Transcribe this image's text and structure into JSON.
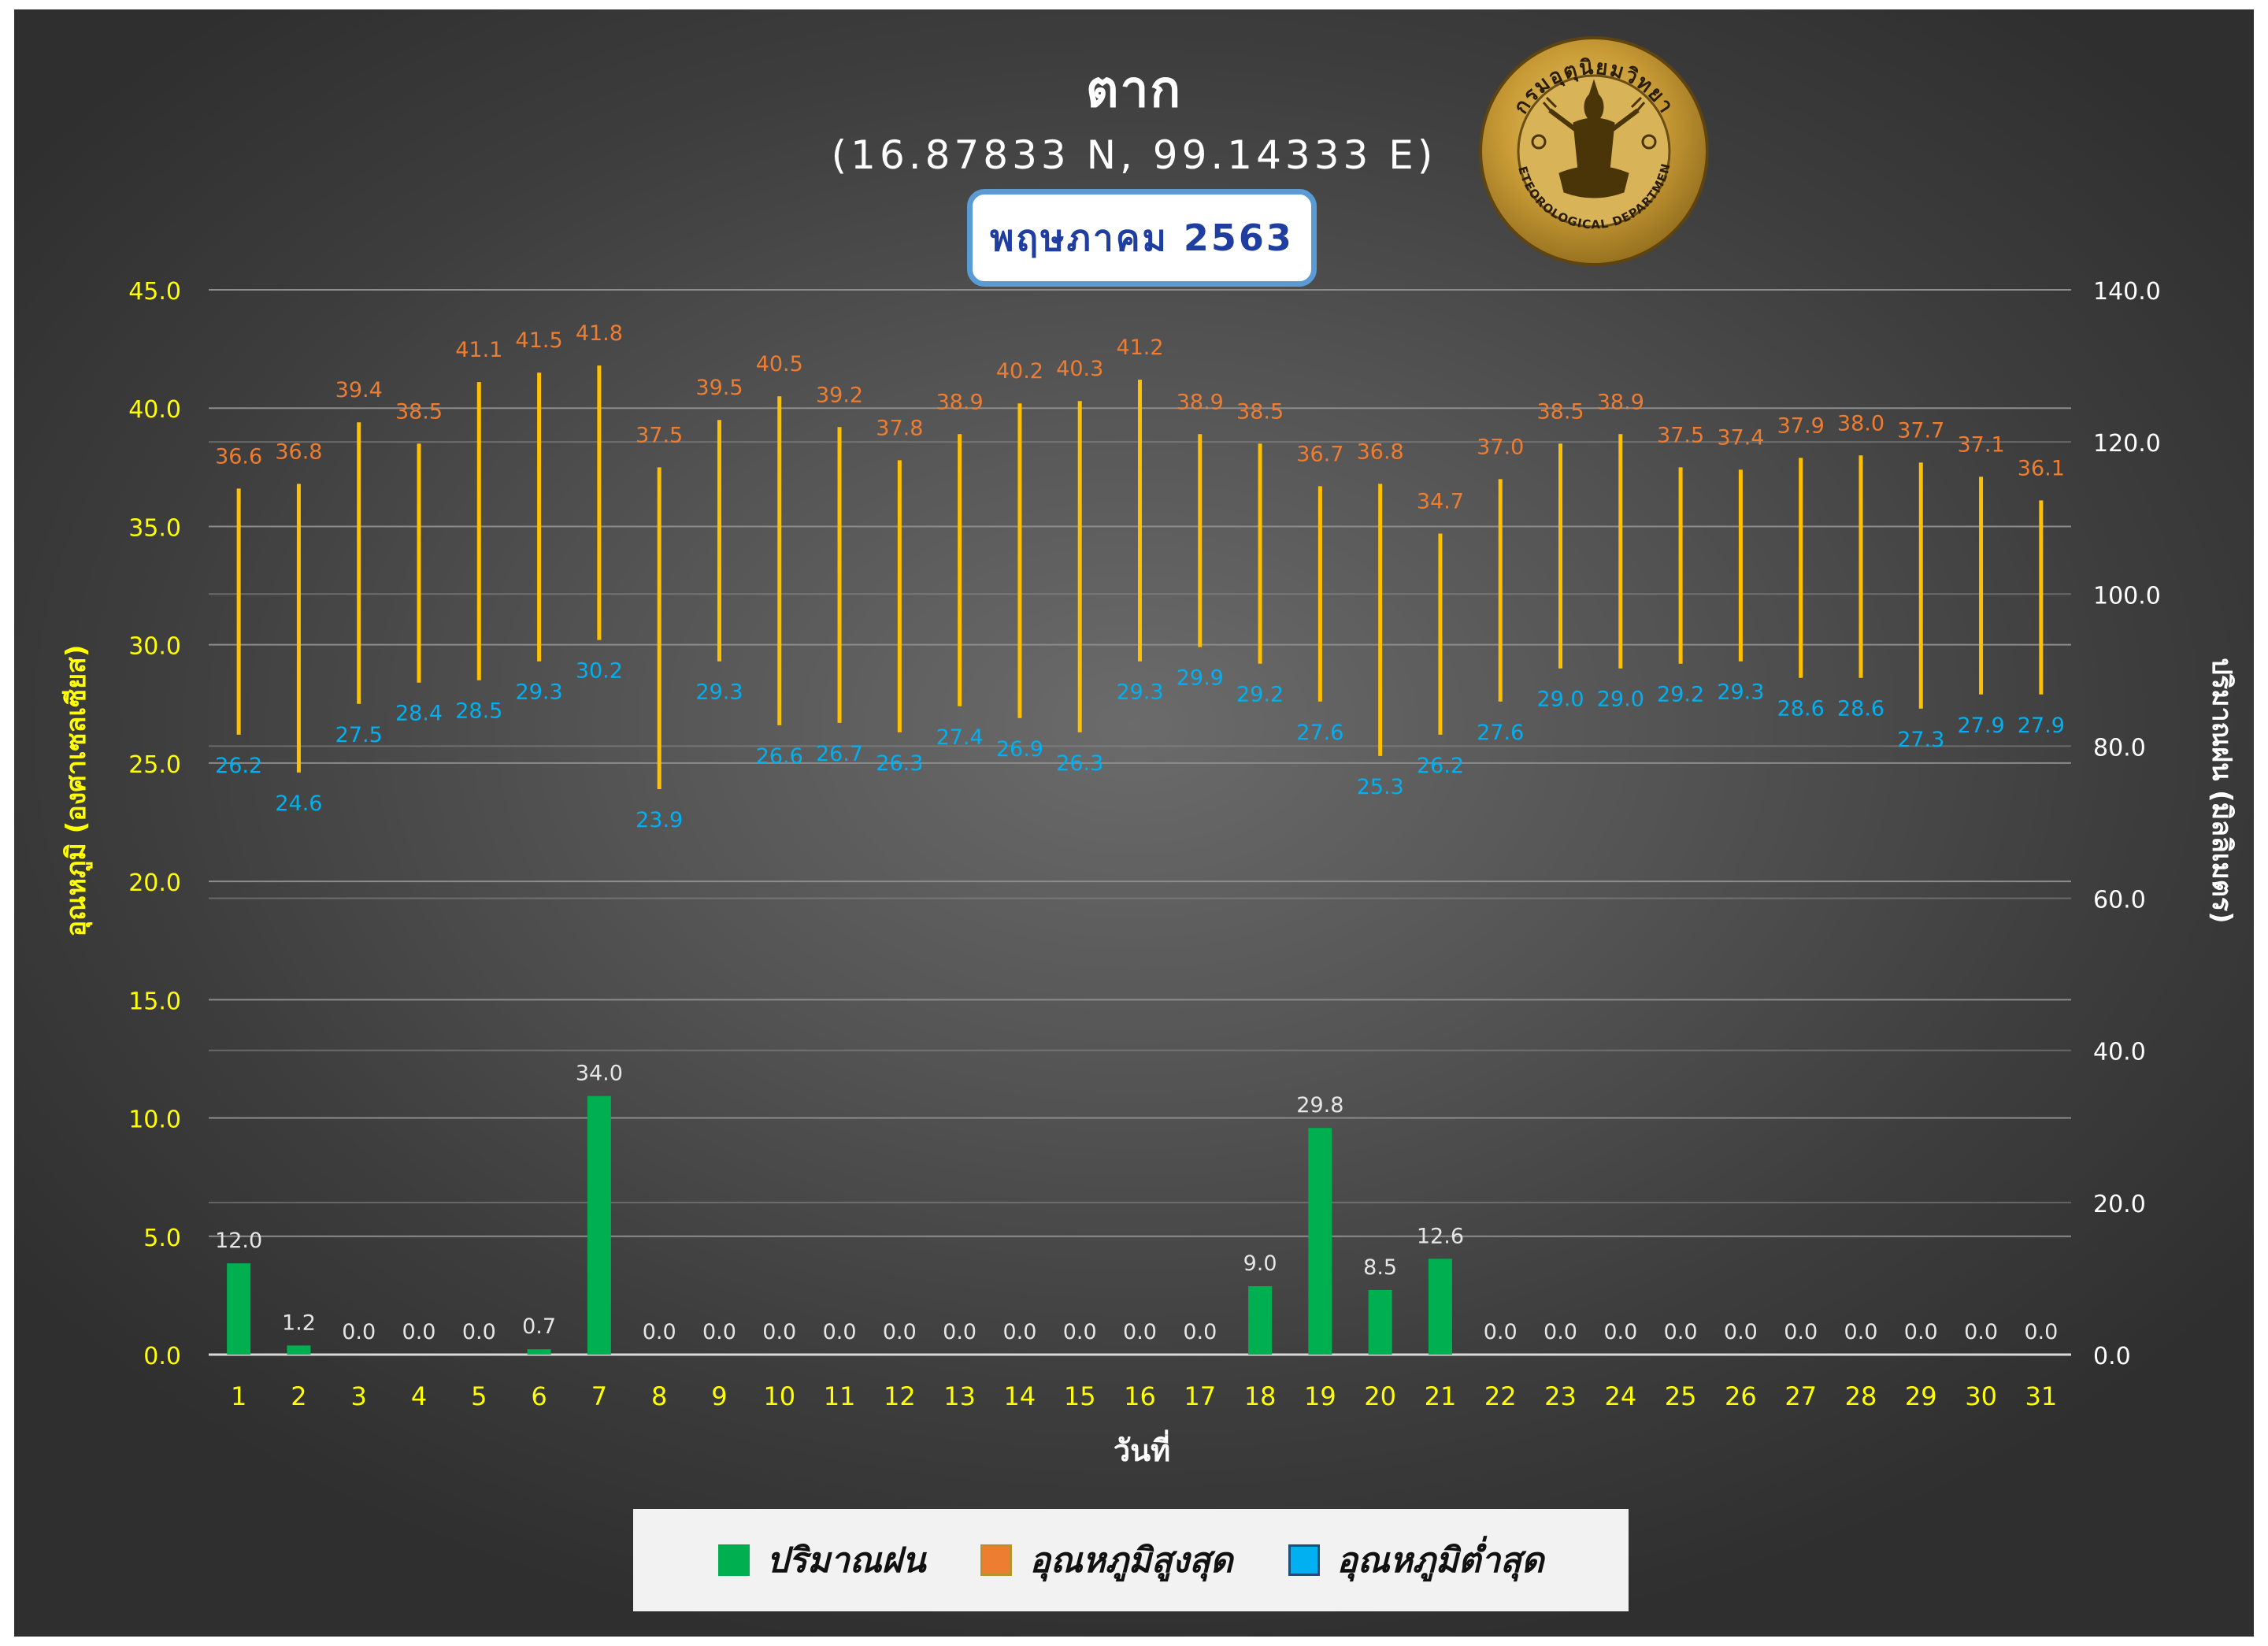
{
  "header": {
    "station": "ตาก",
    "coordinates": "(16.87833 N, 99.14333 E)",
    "month": "พฤษภาคม 2563"
  },
  "logo": {
    "text_top": "กรมอุตุนิยมวิทยา",
    "text_bottom": "METEOROLOGICAL DEPARTMENT"
  },
  "legend": {
    "rain": {
      "label": "ปริมาณฝน",
      "color": "#00b050"
    },
    "tmax": {
      "label": "อุณหภูมิสูงสุด",
      "color": "#ed7d31"
    },
    "tmin": {
      "label": "อุณหภูมิต่ำสุด",
      "color": "#00b0f0"
    }
  },
  "colors": {
    "range_line": "#ffc000",
    "axis_left_text": "#ffff00",
    "axis_right_text": "#ffffff",
    "max_label": "#ed7d31",
    "min_label": "#00b0f0",
    "rain_label": "#e6e6e6",
    "gridline": "#8c8c8c"
  },
  "chart_data": {
    "type": "bar",
    "title": "ตาก",
    "xlabel": "วันที่",
    "ylabel_left": "อุณหภูมิ (องศาเซลเซียส)",
    "ylabel_right": "ปริมาณฝน (มิลลิเมตร)",
    "ylim_left": [
      0,
      45
    ],
    "ylim_right": [
      0,
      140
    ],
    "yticks_left": [
      "0.0",
      "5.0",
      "10.0",
      "15.0",
      "20.0",
      "25.0",
      "30.0",
      "35.0",
      "40.0",
      "45.0"
    ],
    "yticks_right": [
      "0.0",
      "20.0",
      "40.0",
      "60.0",
      "80.0",
      "100.0",
      "120.0",
      "140.0"
    ],
    "grid": true,
    "legend_position": "bottom",
    "categories": [
      "1",
      "2",
      "3",
      "4",
      "5",
      "6",
      "7",
      "8",
      "9",
      "10",
      "11",
      "12",
      "13",
      "14",
      "15",
      "16",
      "17",
      "18",
      "19",
      "20",
      "21",
      "22",
      "23",
      "24",
      "25",
      "26",
      "27",
      "28",
      "29",
      "30",
      "31"
    ],
    "series": [
      {
        "name": "ปริมาณฝน",
        "axis": "right",
        "type": "bar",
        "values": [
          12.0,
          1.2,
          0.0,
          0.0,
          0.0,
          0.7,
          34.0,
          0.0,
          0.0,
          0.0,
          0.0,
          0.0,
          0.0,
          0.0,
          0.0,
          0.0,
          0.0,
          9.0,
          29.8,
          8.5,
          12.6,
          0.0,
          0.0,
          0.0,
          0.0,
          0.0,
          0.0,
          0.0,
          0.0,
          0.0,
          0.0
        ]
      },
      {
        "name": "อุณหภูมิสูงสุด",
        "axis": "left",
        "type": "high",
        "values": [
          36.6,
          36.8,
          39.4,
          38.5,
          41.1,
          41.5,
          41.8,
          37.5,
          39.5,
          40.5,
          39.2,
          37.8,
          38.9,
          40.2,
          40.3,
          41.2,
          38.9,
          38.5,
          36.7,
          36.8,
          34.7,
          37.0,
          38.5,
          38.9,
          37.5,
          37.4,
          37.9,
          38.0,
          37.7,
          37.1,
          36.1
        ]
      },
      {
        "name": "อุณหภูมิต่ำสุด",
        "axis": "left",
        "type": "low",
        "values": [
          26.2,
          24.6,
          27.5,
          28.4,
          28.5,
          29.3,
          30.2,
          23.9,
          29.3,
          26.6,
          26.7,
          26.3,
          27.4,
          26.9,
          26.3,
          29.3,
          29.9,
          29.2,
          27.6,
          25.3,
          26.2,
          27.6,
          29.0,
          29.0,
          29.2,
          29.3,
          28.6,
          28.6,
          27.3,
          27.9,
          27.9
        ]
      }
    ]
  }
}
